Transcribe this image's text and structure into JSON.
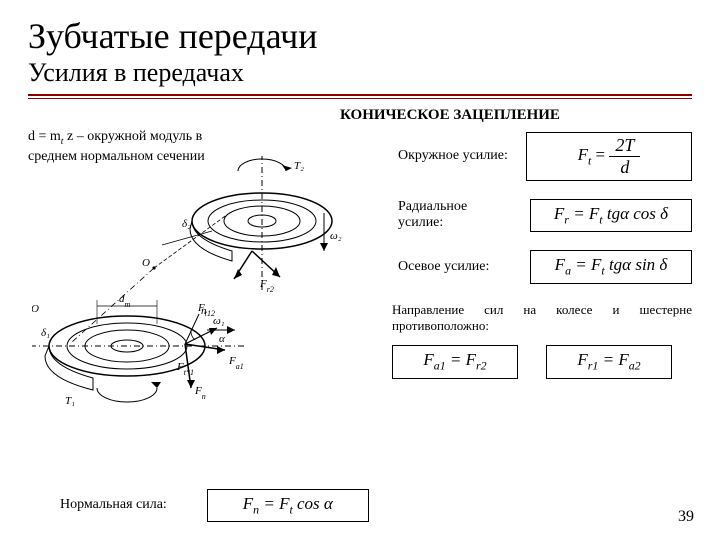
{
  "title": "Зубчатые передачи",
  "subtitle": "Усилия в передачах",
  "section_heading": "КОНИЧЕСКОЕ ЗАЦЕПЛЕНИЕ",
  "module_def_prefix": "d = m",
  "module_def_sub": "t",
  "module_def_rest": " z – окружной модуль в среднем нормальном сечении",
  "rows": {
    "circ": {
      "label": "Окружное усилие:"
    },
    "rad": {
      "label": "Радиальное усилие:"
    },
    "ax": {
      "label": "Осевое усилие:"
    }
  },
  "formulas": {
    "Ft_eq": "F",
    "Ft_sub": "t",
    "Ft_eq2": " = ",
    "Ft_num": "2T",
    "Ft_den": "d",
    "Fr": "F<sub>r</sub> = F<sub>t</sub> tgα cos δ",
    "Fa": "F<sub>a</sub> = F<sub>t</sub> tgα sin δ",
    "Fa1": "F<sub>a1</sub> = F<sub>r2</sub>",
    "Fr1": "F<sub>r1</sub> = F<sub>a2</sub>",
    "Fn": "F<sub>n</sub> = F<sub>t</sub> cos α"
  },
  "postnote": "Направление сил на колесе и шестерне противоположно:",
  "normal_label": "Нормальная сила:",
  "page_number": "39",
  "diagram": {
    "labels": {
      "T2": "T₂",
      "d2": "δ₂",
      "w2": "ω₂",
      "Fr2": "F_{r2}",
      "Fr12": "F_{t12}",
      "O": "O",
      "dm": "d_m",
      "d1": "δ₁",
      "w1": "ω₁",
      "T1": "T₁",
      "n": "n",
      "alpha": "α",
      "Ft1": "F_{t*1}",
      "Fa1": "F_{a1}",
      "Fn": "F_n"
    }
  }
}
